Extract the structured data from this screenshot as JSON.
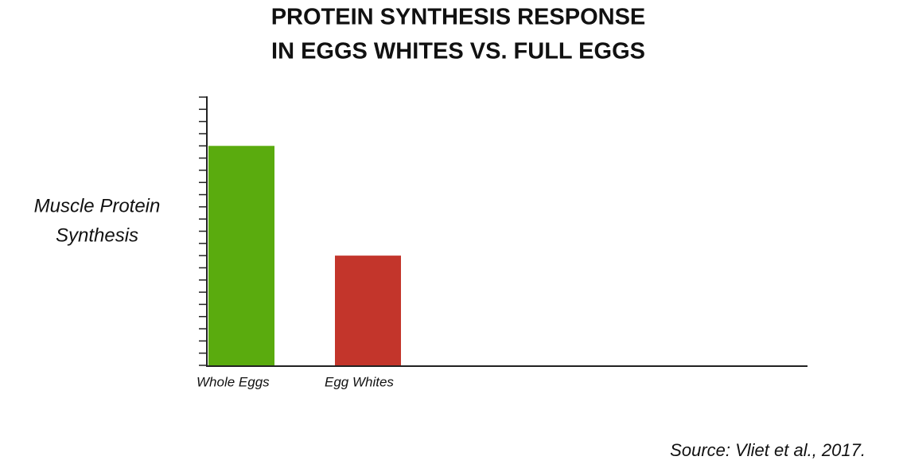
{
  "chart_data": {
    "type": "bar",
    "title": [
      "PROTEIN SYNTHESIS RESPONSE",
      "IN EGGS WHITES VS. FULL EGGS"
    ],
    "y_label": [
      "Muscle Protein",
      "Synthesis"
    ],
    "categories": [
      "Whole Eggs",
      "Egg Whites"
    ],
    "values": [
      18,
      9
    ],
    "colors": [
      "#5aab0e",
      "#c3352b"
    ],
    "ylim": [
      0,
      22
    ],
    "yticks": [
      0,
      1,
      2,
      3,
      4,
      5,
      6,
      7,
      8,
      9,
      10,
      11,
      12,
      13,
      14,
      15,
      16,
      17,
      18,
      19,
      20,
      21,
      22
    ],
    "source": "Source: Vliet et al., 2017."
  }
}
